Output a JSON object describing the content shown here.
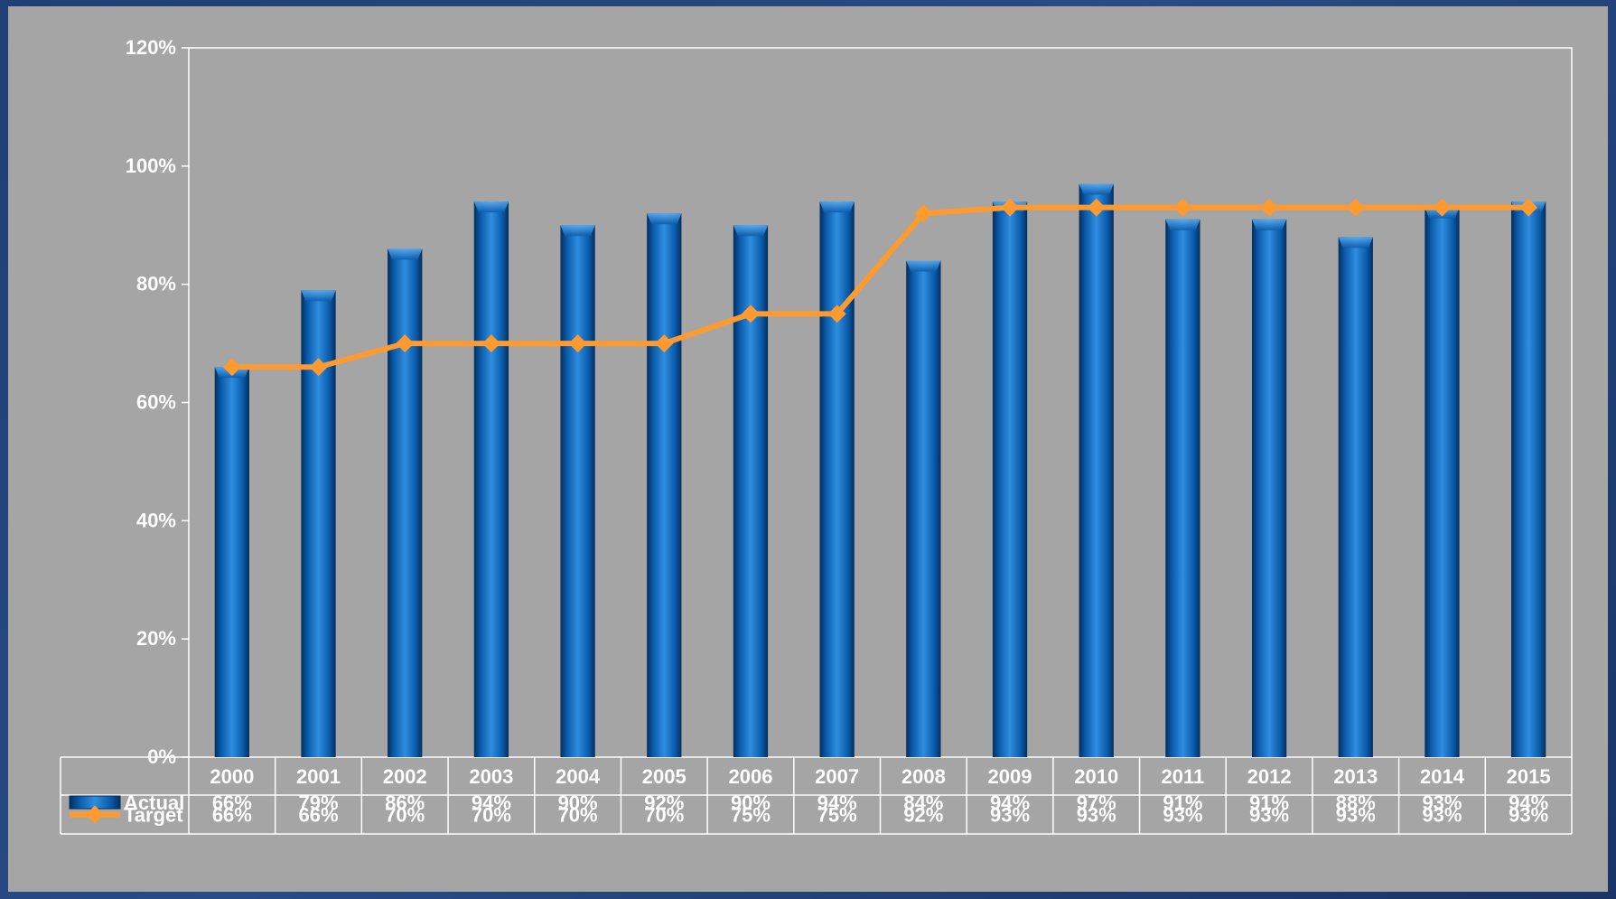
{
  "chart_data": {
    "type": "bar",
    "categories": [
      "2000",
      "2001",
      "2002",
      "2003",
      "2004",
      "2005",
      "2006",
      "2007",
      "2008",
      "2009",
      "2010",
      "2011",
      "2012",
      "2013",
      "2014",
      "2015"
    ],
    "series": [
      {
        "name": "Actual",
        "type": "bar",
        "values": [
          66,
          79,
          86,
          94,
          90,
          92,
          90,
          94,
          84,
          94,
          97,
          91,
          91,
          88,
          93,
          94
        ],
        "labels": [
          "66%",
          "79%",
          "86%",
          "94%",
          "90%",
          "92%",
          "90%",
          "94%",
          "84%",
          "94%",
          "97%",
          "91%",
          "91%",
          "88%",
          "93%",
          "94%"
        ]
      },
      {
        "name": "Target",
        "type": "line",
        "values": [
          66,
          66,
          70,
          70,
          70,
          70,
          75,
          75,
          92,
          93,
          93,
          93,
          93,
          93,
          93,
          93
        ],
        "labels": [
          "66%",
          "66%",
          "70%",
          "70%",
          "70%",
          "70%",
          "75%",
          "75%",
          "92%",
          "93%",
          "93%",
          "93%",
          "93%",
          "93%",
          "93%",
          "93%"
        ]
      }
    ],
    "ylim": [
      0,
      120
    ],
    "yticks": [
      "0%",
      "20%",
      "40%",
      "60%",
      "80%",
      "100%",
      "120%"
    ],
    "title": "",
    "xlabel": "",
    "ylabel": "",
    "grid": false,
    "data_table": true,
    "colors": {
      "bar": "#0a64b8",
      "bar_light": "#2f8de0",
      "bar_dark": "#042e5e",
      "line": "#ff9a2e",
      "axis": "#ffffff",
      "panel": "#a5a5a5"
    }
  }
}
